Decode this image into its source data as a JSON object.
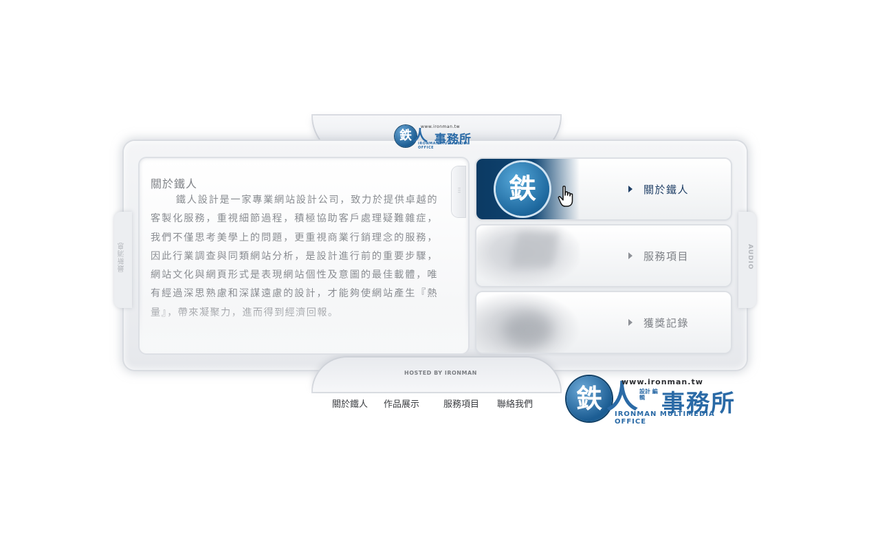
{
  "header": {
    "logo": {
      "glyph": "鉄",
      "ren": "人",
      "url": "www.ironman.tw",
      "name": "事務所",
      "tagline": "IRONMAN MULTIMEDIA OFFICE"
    }
  },
  "side": {
    "left_label": "最新消息",
    "right_label": "AUDIO"
  },
  "content": {
    "title": "關於鐵人",
    "body": "鐵人設計是一家專業網站設計公司，致力於提供卓越的客製化服務，重視細節過程，積極協助客戶處理疑難雜症，我們不僅思考美學上的問題，更重視商業行銷理念的服務，因此行業調查與同類網站分析，是設計進行前的重要步驟，網站文化與網頁形式是表現網站個性及意圖的最佳載體，唯有經過深思熟慮和深謀遠慮的設計，才能夠使網站產生『熱量』，帶來凝聚力，進而得到經濟回報。"
  },
  "menu": {
    "items": [
      {
        "label": "關於鐵人",
        "active": true
      },
      {
        "label": "服務項目",
        "active": false
      },
      {
        "label": "獲獎記錄",
        "active": false
      }
    ],
    "thumb_glyph": "鉄"
  },
  "footer": {
    "hosted": "HOSTED BY IRONMAN",
    "links": [
      "關於鐵人",
      "作品展示",
      "服務項目",
      "聯絡我們"
    ],
    "logo": {
      "glyph": "鉄",
      "ren": "人",
      "url": "www.ironman.tw",
      "mini": "設計 編輯",
      "name": "事務所",
      "tagline": "IRONMAN MULTIMEDIA OFFICE"
    }
  },
  "colors": {
    "brand_blue": "#2a6aa6",
    "active_text": "#1f3f66",
    "inactive_text": "#7d8086"
  }
}
